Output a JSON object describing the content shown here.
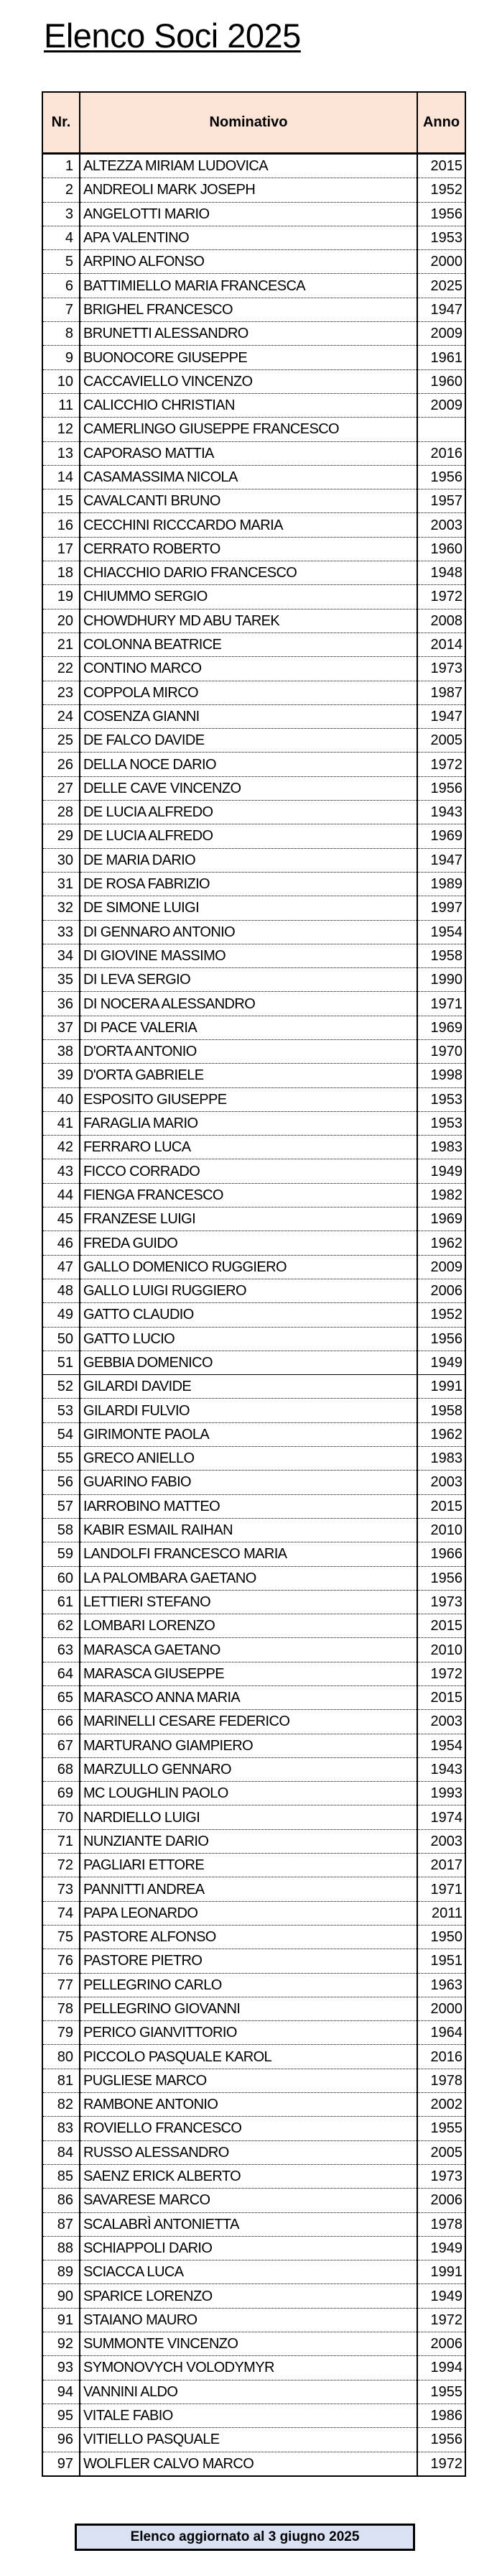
{
  "title": "Elenco Soci 2025",
  "table": {
    "headers": {
      "nr": "Nr.",
      "name": "Nominativo",
      "year": "Anno"
    },
    "header_bg": "#fce4d6",
    "rows": [
      {
        "nr": "1",
        "name": "ALTEZZA MIRIAM LUDOVICA",
        "year": "2015"
      },
      {
        "nr": "2",
        "name": "ANDREOLI MARK JOSEPH",
        "year": "1952"
      },
      {
        "nr": "3",
        "name": "ANGELOTTI MARIO",
        "year": "1956"
      },
      {
        "nr": "4",
        "name": "APA VALENTINO",
        "year": "1953"
      },
      {
        "nr": "5",
        "name": "ARPINO ALFONSO",
        "year": "2000"
      },
      {
        "nr": "6",
        "name": "BATTIMIELLO MARIA FRANCESCA",
        "year": "2025"
      },
      {
        "nr": "7",
        "name": "BRIGHEL FRANCESCO",
        "year": "1947"
      },
      {
        "nr": "8",
        "name": "BRUNETTI ALESSANDRO",
        "year": "2009"
      },
      {
        "nr": "9",
        "name": "BUONOCORE GIUSEPPE",
        "year": "1961"
      },
      {
        "nr": "10",
        "name": "CACCAVIELLO VINCENZO",
        "year": "1960"
      },
      {
        "nr": "11",
        "name": "CALICCHIO CHRISTIAN",
        "year": "2009"
      },
      {
        "nr": "12",
        "name": "CAMERLINGO GIUSEPPE FRANCESCO",
        "year": ""
      },
      {
        "nr": "13",
        "name": "CAPORASO MATTIA",
        "year": "2016"
      },
      {
        "nr": "14",
        "name": "CASAMASSIMA NICOLA",
        "year": "1956"
      },
      {
        "nr": "15",
        "name": "CAVALCANTI BRUNO",
        "year": "1957"
      },
      {
        "nr": "16",
        "name": "CECCHINI RICCCARDO MARIA",
        "year": "2003"
      },
      {
        "nr": "17",
        "name": "CERRATO ROBERTO",
        "year": "1960"
      },
      {
        "nr": "18",
        "name": "CHIACCHIO DARIO FRANCESCO",
        "year": "1948"
      },
      {
        "nr": "19",
        "name": "CHIUMMO SERGIO",
        "year": "1972"
      },
      {
        "nr": "20",
        "name": "CHOWDHURY MD ABU TAREK",
        "year": "2008"
      },
      {
        "nr": "21",
        "name": "COLONNA BEATRICE",
        "year": "2014"
      },
      {
        "nr": "22",
        "name": "CONTINO MARCO",
        "year": "1973"
      },
      {
        "nr": "23",
        "name": "COPPOLA MIRCO",
        "year": "1987"
      },
      {
        "nr": "24",
        "name": "COSENZA GIANNI",
        "year": "1947"
      },
      {
        "nr": "25",
        "name": "DE FALCO DAVIDE",
        "year": "2005"
      },
      {
        "nr": "26",
        "name": "DELLA NOCE DARIO",
        "year": "1972"
      },
      {
        "nr": "27",
        "name": "DELLE CAVE VINCENZO",
        "year": "1956"
      },
      {
        "nr": "28",
        "name": "DE LUCIA ALFREDO",
        "year": "1943"
      },
      {
        "nr": "29",
        "name": "DE LUCIA ALFREDO",
        "year": "1969"
      },
      {
        "nr": "30",
        "name": "DE MARIA DARIO",
        "year": "1947"
      },
      {
        "nr": "31",
        "name": "DE ROSA FABRIZIO",
        "year": "1989"
      },
      {
        "nr": "32",
        "name": "DE SIMONE LUIGI",
        "year": "1997"
      },
      {
        "nr": "33",
        "name": "DI GENNARO ANTONIO",
        "year": "1954"
      },
      {
        "nr": "34",
        "name": "DI GIOVINE MASSIMO",
        "year": "1958"
      },
      {
        "nr": "35",
        "name": "DI LEVA SERGIO",
        "year": "1990"
      },
      {
        "nr": "36",
        "name": "DI NOCERA ALESSANDRO",
        "year": "1971"
      },
      {
        "nr": "37",
        "name": "DI PACE VALERIA",
        "year": "1969"
      },
      {
        "nr": "38",
        "name": "D'ORTA ANTONIO",
        "year": "1970"
      },
      {
        "nr": "39",
        "name": "D'ORTA GABRIELE",
        "year": "1998"
      },
      {
        "nr": "40",
        "name": "ESPOSITO GIUSEPPE",
        "year": "1953"
      },
      {
        "nr": "41",
        "name": "FARAGLIA MARIO",
        "year": "1953"
      },
      {
        "nr": "42",
        "name": "FERRARO LUCA",
        "year": "1983"
      },
      {
        "nr": "43",
        "name": "FICCO CORRADO",
        "year": "1949"
      },
      {
        "nr": "44",
        "name": "FIENGA FRANCESCO",
        "year": "1982"
      },
      {
        "nr": "45",
        "name": "FRANZESE LUIGI",
        "year": "1969"
      },
      {
        "nr": "46",
        "name": "FREDA GUIDO",
        "year": "1962"
      },
      {
        "nr": "47",
        "name": "GALLO DOMENICO RUGGIERO",
        "year": "2009"
      },
      {
        "nr": "48",
        "name": "GALLO LUIGI RUGGIERO",
        "year": "2006"
      },
      {
        "nr": "49",
        "name": "GATTO CLAUDIO",
        "year": "1952"
      },
      {
        "nr": "50",
        "name": "GATTO LUCIO",
        "year": "1956"
      },
      {
        "nr": "51",
        "name": "GEBBIA DOMENICO",
        "year": "1949"
      },
      {
        "nr": "52",
        "name": "GILARDI DAVIDE",
        "year": "1991"
      },
      {
        "nr": "53",
        "name": "GILARDI FULVIO",
        "year": "1958"
      },
      {
        "nr": "54",
        "name": "GIRIMONTE PAOLA",
        "year": "1962"
      },
      {
        "nr": "55",
        "name": "GRECO ANIELLO",
        "year": "1983"
      },
      {
        "nr": "56",
        "name": "GUARINO FABIO",
        "year": "2003"
      },
      {
        "nr": "57",
        "name": "IARROBINO MATTEO",
        "year": "2015"
      },
      {
        "nr": "58",
        "name": "KABIR ESMAIL RAIHAN",
        "year": "2010"
      },
      {
        "nr": "59",
        "name": "LANDOLFI FRANCESCO MARIA",
        "year": "1966"
      },
      {
        "nr": "60",
        "name": "LA PALOMBARA GAETANO",
        "year": "1956"
      },
      {
        "nr": "61",
        "name": "LETTIERI STEFANO",
        "year": "1973"
      },
      {
        "nr": "62",
        "name": "LOMBARI LORENZO",
        "year": "2015"
      },
      {
        "nr": "63",
        "name": "MARASCA GAETANO",
        "year": "2010"
      },
      {
        "nr": "64",
        "name": "MARASCA GIUSEPPE",
        "year": "1972"
      },
      {
        "nr": "65",
        "name": "MARASCO ANNA MARIA",
        "year": "2015"
      },
      {
        "nr": "66",
        "name": "MARINELLI CESARE FEDERICO",
        "year": "2003"
      },
      {
        "nr": "67",
        "name": "MARTURANO GIAMPIERO",
        "year": "1954"
      },
      {
        "nr": "68",
        "name": "MARZULLO GENNARO",
        "year": "1943"
      },
      {
        "nr": "69",
        "name": "MC LOUGHLIN PAOLO",
        "year": "1993"
      },
      {
        "nr": "70",
        "name": "NARDIELLO LUIGI",
        "year": "1974"
      },
      {
        "nr": "71",
        "name": "NUNZIANTE DARIO",
        "year": "2003"
      },
      {
        "nr": "72",
        "name": "PAGLIARI ETTORE",
        "year": "2017"
      },
      {
        "nr": "73",
        "name": "PANNITTI ANDREA",
        "year": "1971"
      },
      {
        "nr": "74",
        "name": "PAPA LEONARDO",
        "year": "2011"
      },
      {
        "nr": "75",
        "name": "PASTORE ALFONSO",
        "year": "1950"
      },
      {
        "nr": "76",
        "name": "PASTORE PIETRO",
        "year": "1951"
      },
      {
        "nr": "77",
        "name": "PELLEGRINO CARLO",
        "year": "1963"
      },
      {
        "nr": "78",
        "name": "PELLEGRINO GIOVANNI",
        "year": "2000"
      },
      {
        "nr": "79",
        "name": "PERICO GIANVITTORIO",
        "year": "1964"
      },
      {
        "nr": "80",
        "name": "PICCOLO PASQUALE KAROL",
        "year": "2016"
      },
      {
        "nr": "81",
        "name": "PUGLIESE MARCO",
        "year": "1978"
      },
      {
        "nr": "82",
        "name": "RAMBONE ANTONIO",
        "year": "2002"
      },
      {
        "nr": "83",
        "name": "ROVIELLO FRANCESCO",
        "year": "1955"
      },
      {
        "nr": "84",
        "name": "RUSSO ALESSANDRO",
        "year": "2005"
      },
      {
        "nr": "85",
        "name": "SAENZ ERICK ALBERTO",
        "year": "1973"
      },
      {
        "nr": "86",
        "name": "SAVARESE MARCO",
        "year": "2006"
      },
      {
        "nr": "87",
        "name": "SCALABRÌ ANTONIETTA",
        "year": "1978"
      },
      {
        "nr": "88",
        "name": "SCHIAPPOLI DARIO",
        "year": "1949"
      },
      {
        "nr": "89",
        "name": "SCIACCA LUCA",
        "year": "1991"
      },
      {
        "nr": "90",
        "name": "SPARICE LORENZO",
        "year": "1949"
      },
      {
        "nr": "91",
        "name": "STAIANO MAURO",
        "year": "1972"
      },
      {
        "nr": "92",
        "name": "SUMMONTE VINCENZO",
        "year": "2006"
      },
      {
        "nr": "93",
        "name": "SYMONOVYCH VOLODYMYR",
        "year": "1994"
      },
      {
        "nr": "94",
        "name": "VANNINI ALDO",
        "year": "1955"
      },
      {
        "nr": "95",
        "name": "VITALE FABIO",
        "year": "1986"
      },
      {
        "nr": "96",
        "name": "VITIELLO PASQUALE",
        "year": "1956"
      },
      {
        "nr": "97",
        "name": "WOLFLER CALVO MARCO",
        "year": "1972"
      }
    ]
  },
  "footer": {
    "text": "Elenco aggiornato al 3 giugno 2025",
    "bg": "#d9e1f2"
  }
}
